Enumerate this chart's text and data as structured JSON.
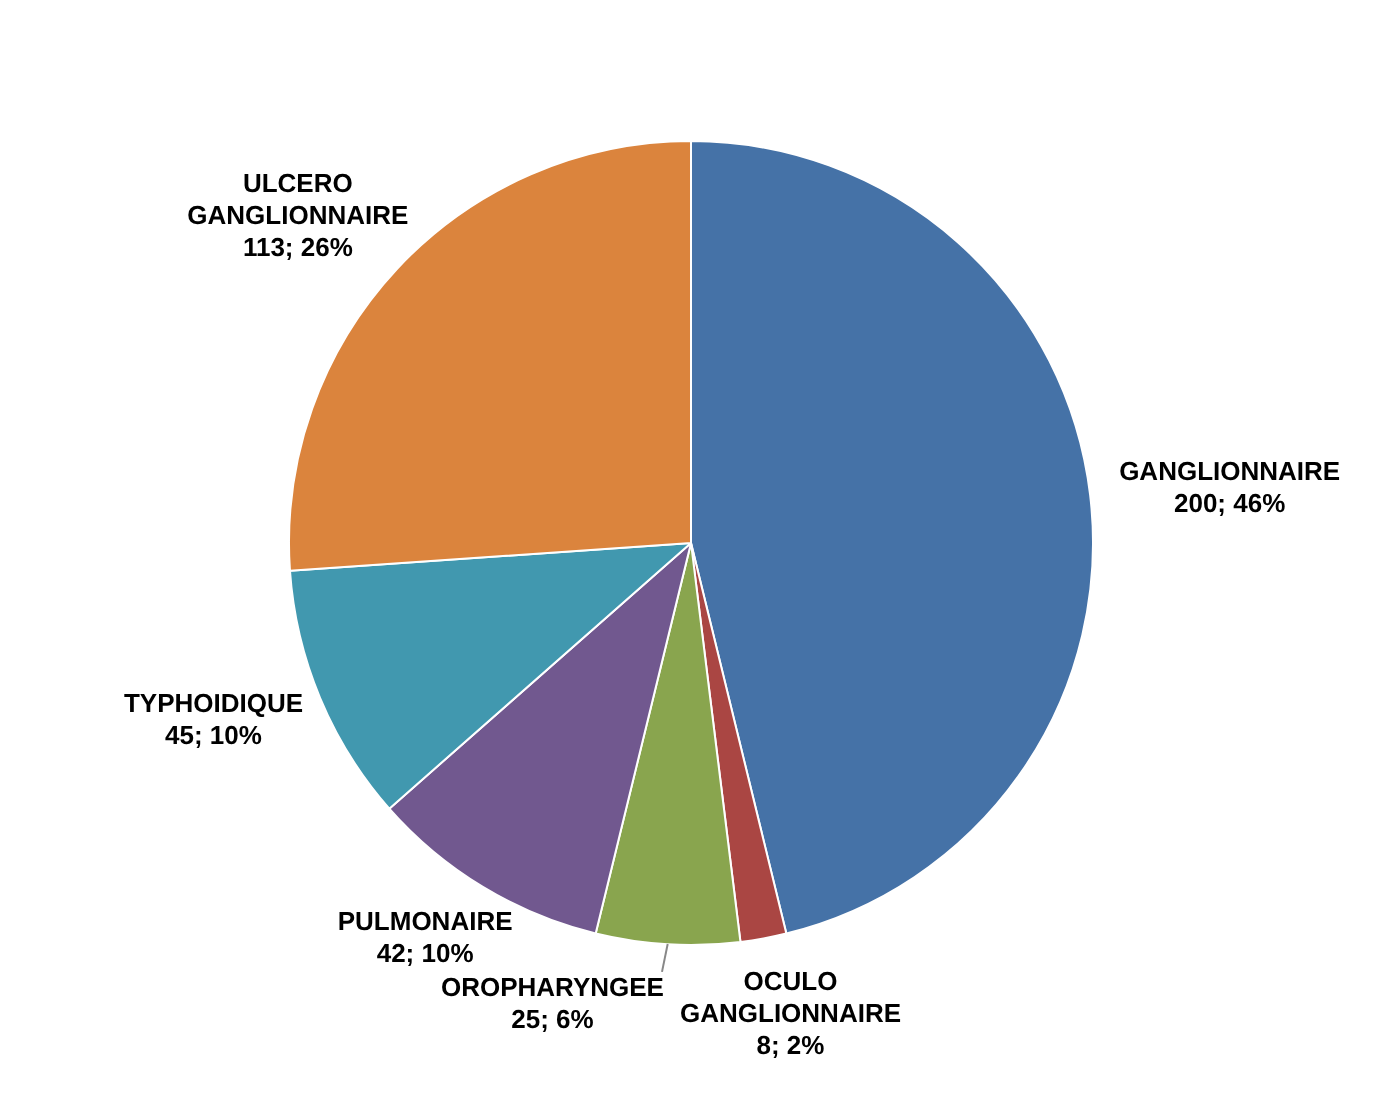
{
  "chart_data": {
    "type": "pie",
    "categories": [
      "GANGLIONNAIRE",
      "OCULO GANGLIONNAIRE",
      "OROPHARYNGEE",
      "PULMONAIRE",
      "TYPHOIDIQUE",
      "ULCERO GANGLIONNAIRE"
    ],
    "values": [
      200,
      8,
      25,
      42,
      45,
      113
    ],
    "colors": [
      "#4572a7",
      "#aa4643",
      "#89a54e",
      "#71588f",
      "#4198af",
      "#db843d"
    ],
    "value_labels": [
      "200; 46%",
      "8; 2%",
      "25; 6%",
      "42; 10%",
      "45; 10%",
      "113; 26%"
    ],
    "legend": false
  }
}
